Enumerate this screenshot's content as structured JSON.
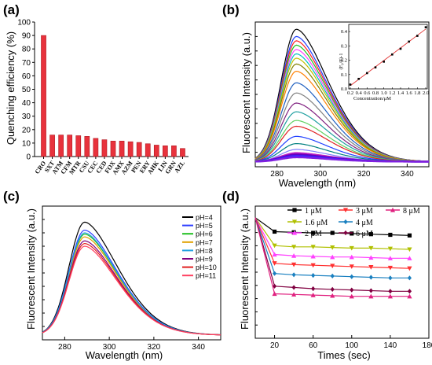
{
  "chart_data": [
    {
      "panel": "(a)",
      "type": "bar",
      "ylabel": "Quenching efficiency (%)",
      "ylim": [
        0,
        100
      ],
      "yticks": [
        0,
        10,
        20,
        30,
        40,
        50,
        60,
        70,
        80,
        90,
        100
      ],
      "categories": [
        "CRO",
        "SXT",
        "ATM",
        "CFM",
        "MTR",
        "CSU",
        "CEC",
        "CED",
        "FOX",
        "AMX",
        "AZM",
        "PEN",
        "ERY",
        "AHK",
        "LIN",
        "GRN",
        "AZL"
      ],
      "values": [
        90,
        16,
        16,
        16,
        15.5,
        15,
        13.5,
        12.5,
        11.5,
        11.5,
        11,
        10.5,
        9.5,
        8.5,
        8,
        8,
        6
      ],
      "color": "#e8323c"
    },
    {
      "panel": "(b)",
      "type": "line",
      "xlabel": "Wavelength (nm)",
      "ylabel": "Fluorescent Intensity (a.u.)",
      "xlim": [
        270,
        350
      ],
      "xticks": [
        280,
        300,
        320,
        340
      ],
      "peak_x": 289,
      "series": [
        {
          "peak": 0.95,
          "color": "#000000"
        },
        {
          "peak": 0.9,
          "color": "#1f3fff"
        },
        {
          "peak": 0.87,
          "color": "#ff2020"
        },
        {
          "peak": 0.84,
          "color": "#20c020"
        },
        {
          "peak": 0.81,
          "color": "#ff40ff"
        },
        {
          "peak": 0.78,
          "color": "#00c0c0"
        },
        {
          "peak": 0.75,
          "color": "#c0c000"
        },
        {
          "peak": 0.71,
          "color": "#808000"
        },
        {
          "peak": 0.66,
          "color": "#ff8000"
        },
        {
          "peak": 0.58,
          "color": "#2060c0"
        },
        {
          "peak": 0.51,
          "color": "#808080"
        },
        {
          "peak": 0.44,
          "color": "#802080"
        },
        {
          "peak": 0.38,
          "color": "#20a0a0"
        },
        {
          "peak": 0.32,
          "color": "#60d060"
        },
        {
          "peak": 0.28,
          "color": "#e02020"
        },
        {
          "peak": 0.21,
          "color": "#2040ff"
        },
        {
          "peak": 0.16,
          "color": "#008080"
        },
        {
          "peak": 0.12,
          "color": "#8080ff"
        },
        {
          "peak": 0.095,
          "color": "#c020c0"
        },
        {
          "peak": 0.085,
          "color": "#6000c0"
        },
        {
          "peak": 0.075,
          "color": "#4020ff"
        },
        {
          "peak": 0.065,
          "color": "#8020e0"
        }
      ],
      "inset": {
        "type": "scatter",
        "xlabel": "Concentration/μM",
        "ylabel": "(F₀/F)-1",
        "xlim": [
          0.2,
          2.0
        ],
        "xticks": [
          0.2,
          0.4,
          0.6,
          0.8,
          1.0,
          1.2,
          1.4,
          1.6,
          1.8,
          2.0
        ],
        "ylim": [
          0,
          0.45
        ],
        "yticks": [
          0.0,
          0.1,
          0.2,
          0.3,
          0.4
        ],
        "x": [
          0.2,
          0.4,
          0.6,
          0.8,
          1.0,
          1.2,
          1.4,
          1.6,
          1.8,
          2.0
        ],
        "y": [
          0.03,
          0.07,
          0.11,
          0.15,
          0.19,
          0.24,
          0.28,
          0.33,
          0.37,
          0.43
        ]
      }
    },
    {
      "panel": "(c)",
      "type": "line",
      "xlabel": "Wavelength (nm)",
      "ylabel": "Fluorescent Intensity (a.u.)",
      "xlim": [
        270,
        350
      ],
      "xticks": [
        280,
        300,
        320,
        340
      ],
      "peak_x": 289,
      "legend_position": "top-right",
      "series": [
        {
          "name": "pH=4",
          "peak": 0.88,
          "color": "#000000"
        },
        {
          "name": "pH=5",
          "peak": 0.82,
          "color": "#3040ff"
        },
        {
          "name": "pH=6",
          "peak": 0.79,
          "color": "#20c020"
        },
        {
          "name": "pH=7",
          "peak": 0.77,
          "color": "#e0a000"
        },
        {
          "name": "pH=8",
          "peak": 0.8,
          "color": "#20a0e0"
        },
        {
          "name": "pH=9",
          "peak": 0.74,
          "color": "#800080"
        },
        {
          "name": "pH=10",
          "peak": 0.72,
          "color": "#e02020"
        },
        {
          "name": "pH=11",
          "peak": 0.7,
          "color": "#ff4060"
        }
      ]
    },
    {
      "panel": "(d)",
      "type": "line",
      "xlabel": "Times (sec)",
      "ylabel": "Fluorescent Intensity (a.u.)",
      "xlim": [
        0,
        180
      ],
      "xticks": [
        20,
        60,
        100,
        140,
        180
      ],
      "legend_position": "top",
      "x": [
        0,
        20,
        40,
        60,
        80,
        100,
        120,
        140,
        160
      ],
      "series": [
        {
          "name": "1 μM",
          "color": "#000000",
          "values": [
            1.0,
            0.89,
            0.885,
            0.88,
            0.88,
            0.875,
            0.87,
            0.865,
            0.86
          ]
        },
        {
          "name": "1.6 μM",
          "color": "#b0c000",
          "values": [
            1.0,
            0.78,
            0.77,
            0.77,
            0.765,
            0.76,
            0.76,
            0.755,
            0.75
          ]
        },
        {
          "name": "2 μM",
          "color": "#ff40ff",
          "values": [
            1.0,
            0.71,
            0.7,
            0.695,
            0.69,
            0.69,
            0.685,
            0.68,
            0.68
          ]
        },
        {
          "name": "3 μM",
          "color": "#ff3030",
          "values": [
            1.0,
            0.64,
            0.63,
            0.625,
            0.62,
            0.615,
            0.61,
            0.605,
            0.6
          ]
        },
        {
          "name": "4 μM",
          "color": "#1a80c0",
          "values": [
            1.0,
            0.56,
            0.55,
            0.545,
            0.54,
            0.535,
            0.53,
            0.525,
            0.525
          ]
        },
        {
          "name": "6 μM",
          "color": "#800040",
          "values": [
            1.0,
            0.46,
            0.45,
            0.44,
            0.435,
            0.43,
            0.425,
            0.42,
            0.42
          ]
        },
        {
          "name": "8 μM",
          "color": "#e0207f",
          "values": [
            1.0,
            0.4,
            0.395,
            0.39,
            0.385,
            0.38,
            0.38,
            0.38,
            0.38
          ]
        }
      ]
    }
  ]
}
